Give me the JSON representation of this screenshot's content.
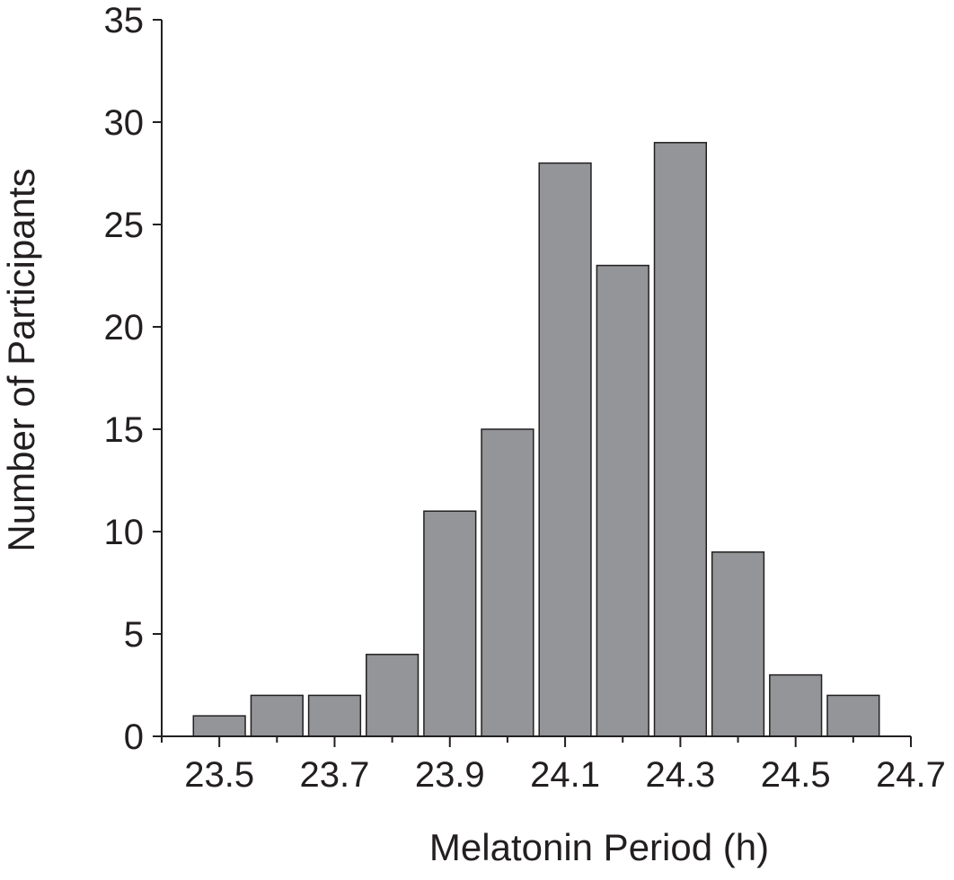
{
  "chart_data": {
    "type": "bar",
    "title": "",
    "xlabel": "Melatonin Period (h)",
    "ylabel": "Number of Participants",
    "bin_width": 0.1,
    "categories": [
      23.5,
      23.6,
      23.7,
      23.8,
      23.9,
      24.0,
      24.1,
      24.2,
      24.3,
      24.4,
      24.5,
      24.6
    ],
    "values": [
      1,
      2,
      2,
      4,
      11,
      15,
      28,
      23,
      29,
      9,
      3,
      2
    ],
    "xlim": [
      23.4,
      24.7
    ],
    "ylim": [
      0,
      35
    ],
    "xticks": [
      "23.5",
      "23.7",
      "23.9",
      "24.1",
      "24.3",
      "24.5",
      "24.7"
    ],
    "yticks": [
      "0",
      "5",
      "10",
      "15",
      "20",
      "25",
      "30",
      "35"
    ],
    "grid": false,
    "legend": "none",
    "colors": {
      "bar_fill": "#939598",
      "bar_edge": "#231f20",
      "axis": "#231f20"
    }
  }
}
